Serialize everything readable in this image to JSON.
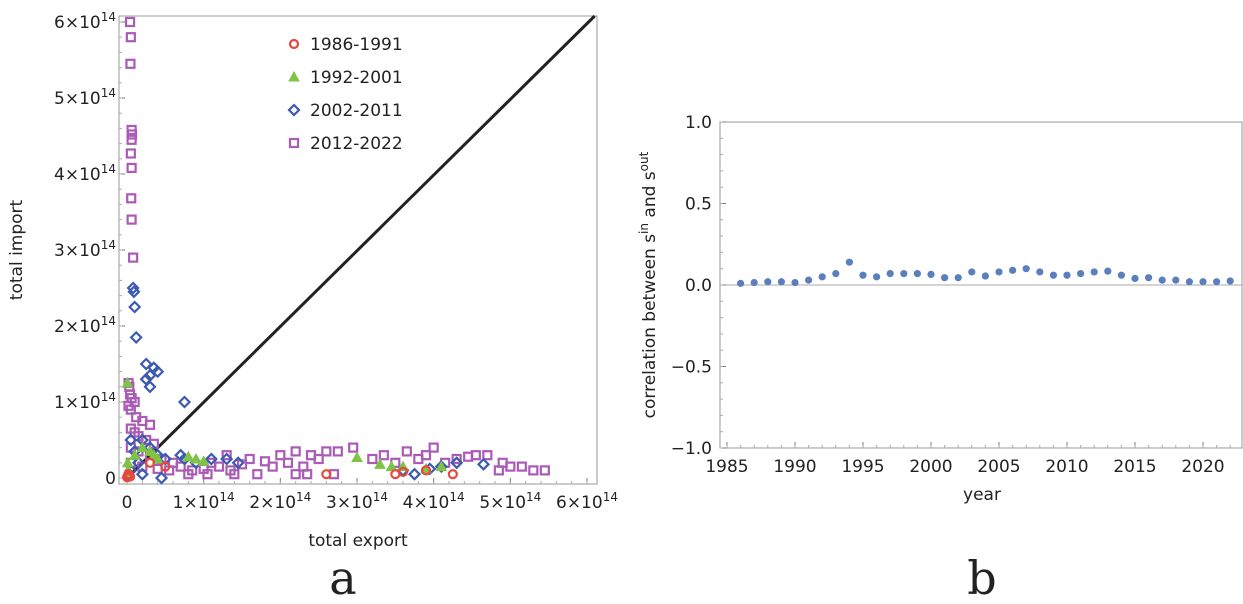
{
  "panels": {
    "a": "a",
    "b": "b"
  },
  "chart_data": [
    {
      "type": "scatter",
      "panel": "a",
      "xlabel": "total export",
      "ylabel": "total import",
      "xlim": [
        0,
        610000000000000.0
      ],
      "ylim": [
        0,
        610000000000000.0
      ],
      "x_ticks": [
        {
          "value": 0,
          "label": "0"
        },
        {
          "value": 100000000000000.0,
          "label": "1×10",
          "exp": "14"
        },
        {
          "value": 200000000000000.0,
          "label": "2×10",
          "exp": "14"
        },
        {
          "value": 300000000000000.0,
          "label": "3×10",
          "exp": "14"
        },
        {
          "value": 400000000000000.0,
          "label": "4×10",
          "exp": "14"
        },
        {
          "value": 500000000000000.0,
          "label": "5×10",
          "exp": "14"
        },
        {
          "value": 600000000000000.0,
          "label": "6×10",
          "exp": "14"
        }
      ],
      "y_ticks": [
        {
          "value": 0,
          "label": "0"
        },
        {
          "value": 100000000000000.0,
          "label": "1×10",
          "exp": "14"
        },
        {
          "value": 200000000000000.0,
          "label": "2×10",
          "exp": "14"
        },
        {
          "value": 300000000000000.0,
          "label": "3×10",
          "exp": "14"
        },
        {
          "value": 400000000000000.0,
          "label": "4×10",
          "exp": "14"
        },
        {
          "value": 500000000000000.0,
          "label": "5×10",
          "exp": "14"
        },
        {
          "value": 600000000000000.0,
          "label": "6×10",
          "exp": "14"
        }
      ],
      "reference_line": {
        "from": [
          0,
          0
        ],
        "to": [
          610000000000000.0,
          610000000000000.0
        ],
        "color": "#222222"
      },
      "legend_position": "top-center",
      "series": [
        {
          "name": "1986-1991",
          "marker": "circle",
          "color": "#e8473e",
          "points": [
            [
              300000000000.0,
              1000000000000.0
            ],
            [
              1000000000000.0,
              3000000000000.0
            ],
            [
              2000000000000.0,
              5000000000000.0
            ],
            [
              4000000000000.0,
              2000000000000.0
            ],
            [
              30000000000000.0,
              20000000000000.0
            ],
            [
              50000000000000.0,
              15000000000000.0
            ],
            [
              260000000000000.0,
              5000000000000.0
            ],
            [
              350000000000000.0,
              5000000000000.0
            ],
            [
              360000000000000.0,
              8000000000000.0
            ],
            [
              390000000000000.0,
              10000000000000.0
            ],
            [
              425000000000000.0,
              5000000000000.0
            ]
          ]
        },
        {
          "name": "1992-2001",
          "marker": "triangle",
          "color": "#7fc445",
          "points": [
            [
              500000000000.0,
              125000000000000.0
            ],
            [
              1000000000000.0,
              20000000000000.0
            ],
            [
              2000000000000.0,
              10000000000000.0
            ],
            [
              3000000000000.0,
              5000000000000.0
            ],
            [
              10000000000000.0,
              30000000000000.0
            ],
            [
              20000000000000.0,
              40000000000000.0
            ],
            [
              30000000000000.0,
              35000000000000.0
            ],
            [
              35000000000000.0,
              30000000000000.0
            ],
            [
              40000000000000.0,
              25000000000000.0
            ],
            [
              80000000000000.0,
              28000000000000.0
            ],
            [
              90000000000000.0,
              25000000000000.0
            ],
            [
              100000000000000.0,
              22000000000000.0
            ],
            [
              300000000000000.0,
              27000000000000.0
            ],
            [
              330000000000000.0,
              18000000000000.0
            ],
            [
              345000000000000.0,
              15000000000000.0
            ],
            [
              360000000000000.0,
              15000000000000.0
            ],
            [
              390000000000000.0,
              12000000000000.0
            ],
            [
              410000000000000.0,
              15000000000000.0
            ]
          ]
        },
        {
          "name": "2002-2011",
          "marker": "diamond",
          "color": "#3c5ab0",
          "points": [
            [
              8000000000000.0,
              250000000000000.0
            ],
            [
              9000000000000.0,
              245000000000000.0
            ],
            [
              10000000000000.0,
              225000000000000.0
            ],
            [
              12000000000000.0,
              185000000000000.0
            ],
            [
              25000000000000.0,
              150000000000000.0
            ],
            [
              30000000000000.0,
              135000000000000.0
            ],
            [
              35000000000000.0,
              145000000000000.0
            ],
            [
              40000000000000.0,
              140000000000000.0
            ],
            [
              25000000000000.0,
              130000000000000.0
            ],
            [
              30000000000000.0,
              120000000000000.0
            ],
            [
              5000000000000.0,
              50000000000000.0
            ],
            [
              10000000000000.0,
              35000000000000.0
            ],
            [
              15000000000000.0,
              20000000000000.0
            ],
            [
              20000000000000.0,
              50000000000000.0
            ],
            [
              30000000000000.0,
              40000000000000.0
            ],
            [
              40000000000000.0,
              30000000000000.0
            ],
            [
              50000000000000.0,
              25000000000000.0
            ],
            [
              45000000000000.0,
              0.0
            ],
            [
              20000000000000.0,
              5000000000000.0
            ],
            [
              5000000000000.0,
              10000000000000.0
            ],
            [
              70000000000000.0,
              30000000000000.0
            ],
            [
              75000000000000.0,
              25000000000000.0
            ],
            [
              90000000000000.0,
              20000000000000.0
            ],
            [
              75000000000000.0,
              100000000000000.0
            ],
            [
              110000000000000.0,
              25000000000000.0
            ],
            [
              130000000000000.0,
              25000000000000.0
            ],
            [
              145000000000000.0,
              20000000000000.0
            ],
            [
              360000000000000.0,
              10000000000000.0
            ],
            [
              375000000000000.0,
              5000000000000.0
            ],
            [
              395000000000000.0,
              12000000000000.0
            ],
            [
              410000000000000.0,
              15000000000000.0
            ],
            [
              430000000000000.0,
              20000000000000.0
            ],
            [
              465000000000000.0,
              18000000000000.0
            ]
          ]
        },
        {
          "name": "2012-2022",
          "marker": "square",
          "color": "#a95bb6",
          "points": [
            [
              4000000000000.0,
              600000000000000.0
            ],
            [
              5000000000000.0,
              580000000000000.0
            ],
            [
              4500000000000.0,
              545000000000000.0
            ],
            [
              6000000000000.0,
              458000000000000.0
            ],
            [
              6500000000000.0,
              452000000000000.0
            ],
            [
              6000000000000.0,
              445000000000000.0
            ],
            [
              5000000000000.0,
              427000000000000.0
            ],
            [
              6000000000000.0,
              408000000000000.0
            ],
            [
              5500000000000.0,
              368000000000000.0
            ],
            [
              6000000000000.0,
              340000000000000.0
            ],
            [
              8000000000000.0,
              290000000000000.0
            ],
            [
              2000000000000.0,
              125000000000000.0
            ],
            [
              3000000000000.0,
              120000000000000.0
            ],
            [
              4000000000000.0,
              110000000000000.0
            ],
            [
              6000000000000.0,
              105000000000000.0
            ],
            [
              10000000000000.0,
              100000000000000.0
            ],
            [
              2000000000000.0,
              95000000000000.0
            ],
            [
              5000000000000.0,
              90000000000000.0
            ],
            [
              12000000000000.0,
              80000000000000.0
            ],
            [
              20000000000000.0,
              75000000000000.0
            ],
            [
              30000000000000.0,
              70000000000000.0
            ],
            [
              5000000000000.0,
              65000000000000.0
            ],
            [
              10000000000000.0,
              60000000000000.0
            ],
            [
              15000000000000.0,
              55000000000000.0
            ],
            [
              25000000000000.0,
              50000000000000.0
            ],
            [
              35000000000000.0,
              45000000000000.0
            ],
            [
              5000000000000.0,
              40000000000000.0
            ],
            [
              15000000000000.0,
              35000000000000.0
            ],
            [
              30000000000000.0,
              30000000000000.0
            ],
            [
              45000000000000.0,
              25000000000000.0
            ],
            [
              60000000000000.0,
              20000000000000.0
            ],
            [
              5000000000000.0,
              20000000000000.0
            ],
            [
              20000000000000.0,
              15000000000000.0
            ],
            [
              40000000000000.0,
              12000000000000.0
            ],
            [
              55000000000000.0,
              10000000000000.0
            ],
            [
              70000000000000.0,
              15000000000000.0
            ],
            [
              85000000000000.0,
              10000000000000.0
            ],
            [
              100000000000000.0,
              12000000000000.0
            ],
            [
              110000000000000.0,
              20000000000000.0
            ],
            [
              120000000000000.0,
              15000000000000.0
            ],
            [
              130000000000000.0,
              30000000000000.0
            ],
            [
              135000000000000.0,
              10000000000000.0
            ],
            [
              150000000000000.0,
              18000000000000.0
            ],
            [
              160000000000000.0,
              25000000000000.0
            ],
            [
              170000000000000.0,
              5000000000000.0
            ],
            [
              180000000000000.0,
              22000000000000.0
            ],
            [
              190000000000000.0,
              15000000000000.0
            ],
            [
              200000000000000.0,
              30000000000000.0
            ],
            [
              210000000000000.0,
              20000000000000.0
            ],
            [
              220000000000000.0,
              35000000000000.0
            ],
            [
              230000000000000.0,
              15000000000000.0
            ],
            [
              240000000000000.0,
              30000000000000.0
            ],
            [
              250000000000000.0,
              25000000000000.0
            ],
            [
              260000000000000.0,
              35000000000000.0
            ],
            [
              275000000000000.0,
              35000000000000.0
            ],
            [
              295000000000000.0,
              40000000000000.0
            ],
            [
              320000000000000.0,
              25000000000000.0
            ],
            [
              335000000000000.0,
              30000000000000.0
            ],
            [
              350000000000000.0,
              20000000000000.0
            ],
            [
              365000000000000.0,
              35000000000000.0
            ],
            [
              380000000000000.0,
              25000000000000.0
            ],
            [
              390000000000000.0,
              30000000000000.0
            ],
            [
              400000000000000.0,
              40000000000000.0
            ],
            [
              415000000000000.0,
              20000000000000.0
            ],
            [
              430000000000000.0,
              25000000000000.0
            ],
            [
              445000000000000.0,
              28000000000000.0
            ],
            [
              455000000000000.0,
              30000000000000.0
            ],
            [
              470000000000000.0,
              30000000000000.0
            ],
            [
              485000000000000.0,
              10000000000000.0
            ],
            [
              490000000000000.0,
              20000000000000.0
            ],
            [
              500000000000000.0,
              15000000000000.0
            ],
            [
              515000000000000.0,
              15000000000000.0
            ],
            [
              530000000000000.0,
              10000000000000.0
            ],
            [
              545000000000000.0,
              10000000000000.0
            ],
            [
              80000000000000.0,
              5000000000000.0
            ],
            [
              105000000000000.0,
              5000000000000.0
            ],
            [
              140000000000000.0,
              5000000000000.0
            ],
            [
              220000000000000.0,
              5000000000000.0
            ],
            [
              235000000000000.0,
              5000000000000.0
            ],
            [
              270000000000000.0,
              5000000000000.0
            ]
          ]
        }
      ]
    },
    {
      "type": "scatter",
      "panel": "b",
      "xlabel": "year",
      "ylabel_base": "correlation between s",
      "ylabel_sup1": "in",
      "ylabel_mid": " and s",
      "ylabel_sup2": "out",
      "xlim": [
        1985,
        2023
      ],
      "ylim": [
        -1.0,
        1.0
      ],
      "x_ticks": [
        {
          "value": 1985,
          "label": "1985"
        },
        {
          "value": 1990,
          "label": "1990"
        },
        {
          "value": 1995,
          "label": "1995"
        },
        {
          "value": 2000,
          "label": "2000"
        },
        {
          "value": 2005,
          "label": "2005"
        },
        {
          "value": 2010,
          "label": "2010"
        },
        {
          "value": 2015,
          "label": "2015"
        },
        {
          "value": 2020,
          "label": "2020"
        }
      ],
      "y_ticks": [
        {
          "value": 1.0,
          "label": "1.0"
        },
        {
          "value": 0.5,
          "label": "0.5"
        },
        {
          "value": 0.0,
          "label": "0.0"
        },
        {
          "value": -0.5,
          "label": "−0.5"
        },
        {
          "value": -1.0,
          "label": "−1.0"
        }
      ],
      "color": "#5b7fbd",
      "series": [
        {
          "x": [
            1986,
            1987,
            1988,
            1989,
            1990,
            1991,
            1992,
            1993,
            1994,
            1995,
            1996,
            1997,
            1998,
            1999,
            2000,
            2001,
            2002,
            2003,
            2004,
            2005,
            2006,
            2007,
            2008,
            2009,
            2010,
            2011,
            2012,
            2013,
            2014,
            2015,
            2016,
            2017,
            2018,
            2019,
            2020,
            2021,
            2022
          ],
          "y": [
            0.01,
            0.015,
            0.02,
            0.02,
            0.015,
            0.03,
            0.05,
            0.07,
            0.14,
            0.06,
            0.05,
            0.07,
            0.07,
            0.07,
            0.065,
            0.045,
            0.045,
            0.08,
            0.055,
            0.08,
            0.09,
            0.1,
            0.08,
            0.06,
            0.06,
            0.07,
            0.08,
            0.085,
            0.06,
            0.04,
            0.045,
            0.03,
            0.03,
            0.02,
            0.02,
            0.02,
            0.025
          ]
        }
      ]
    }
  ]
}
